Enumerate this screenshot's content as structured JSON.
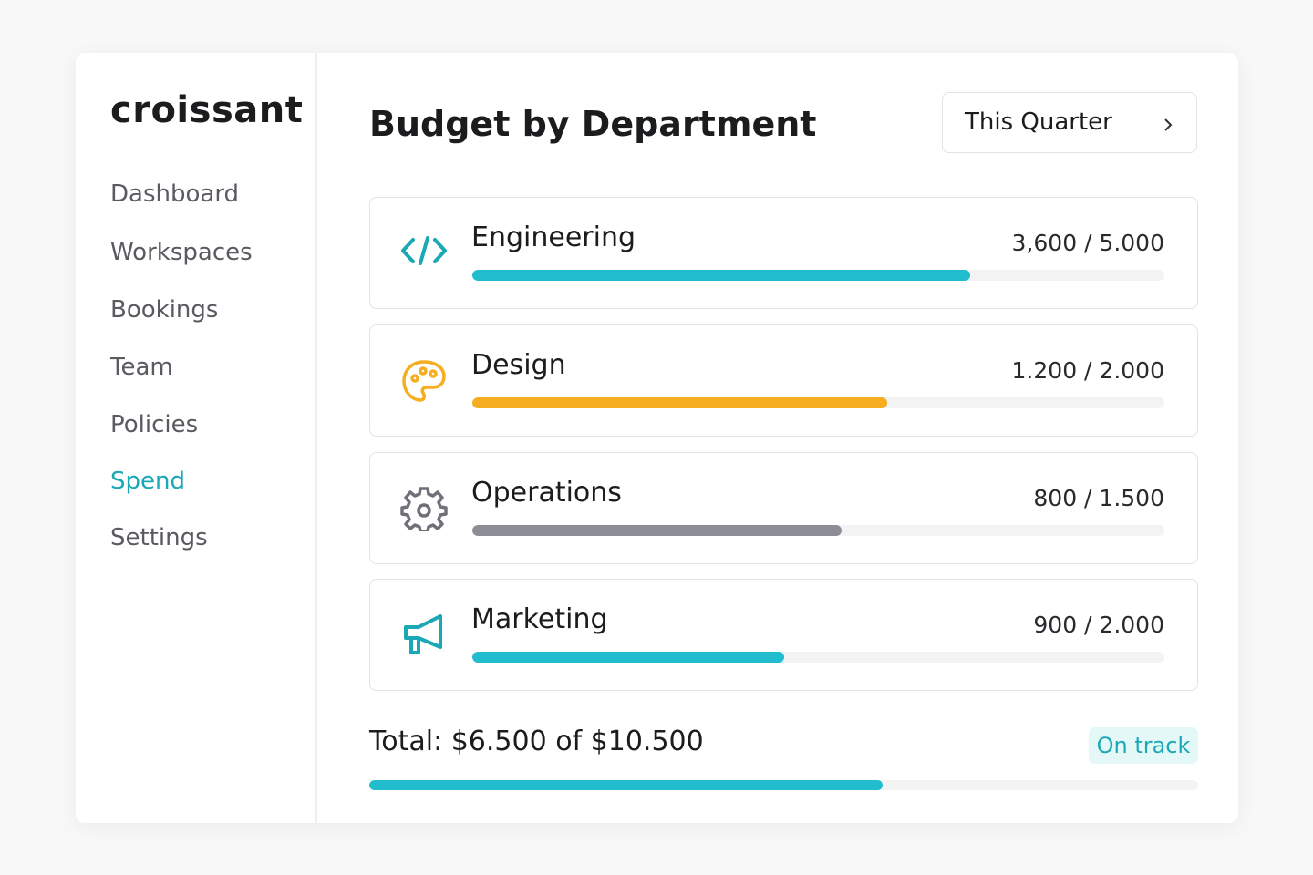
{
  "sidebar": {
    "logo": "croissant",
    "items": [
      "Dashboard",
      "Workspaces",
      "Bookings",
      "Team",
      "Policies",
      "Spend",
      "Settings"
    ]
  },
  "header": {
    "title": "Budget by Department",
    "period": "This Quarter"
  },
  "departments": [
    {
      "name": "Engineering",
      "label": "3,600 / 5.000",
      "spent": 3600,
      "budget": 5000,
      "color": "#22bccf"
    },
    {
      "name": "Design",
      "label": "1.200 / 2.000",
      "spent": 1200,
      "budget": 2000,
      "color": "#f6ad1f"
    },
    {
      "name": "Operations",
      "label": "800 / 1.500",
      "spent": 800,
      "budget": 1500,
      "color": "#8d8d95"
    },
    {
      "name": "Marketing",
      "label": "900 / 2.000",
      "spent": 900,
      "budget": 2000,
      "color": "#22bccf"
    }
  ],
  "total": {
    "label": "Total: $6.500 of $10.500",
    "spent": 6500,
    "budget": 10500,
    "color": "#22bccf",
    "status": "On track"
  }
}
